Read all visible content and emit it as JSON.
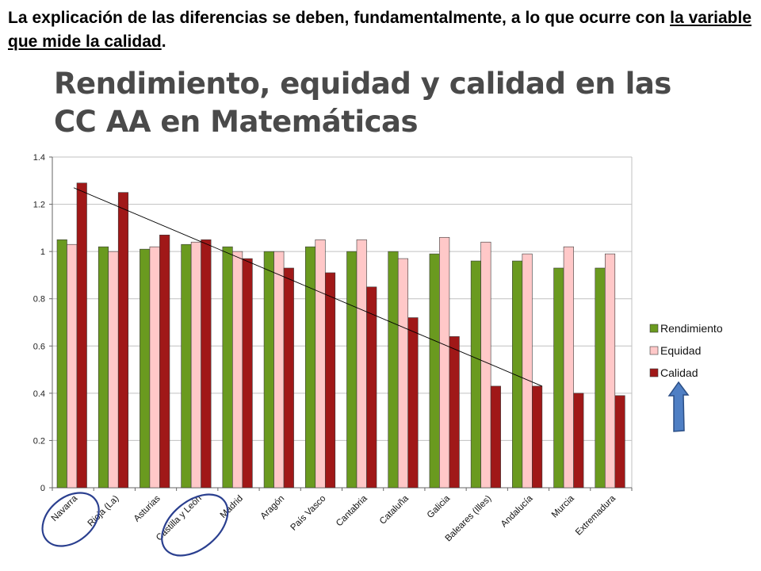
{
  "intro": {
    "text_before": "La explicación de las diferencias se deben, fundamentalmente, a lo que ocurre con ",
    "text_underlined": "la variable que mide la calidad",
    "text_after": "."
  },
  "slide_title": "Rendimiento, equidad y calidad en las CC AA en Matemáticas",
  "chart_data": {
    "type": "bar",
    "title": "",
    "xlabel": "",
    "ylabel": "",
    "ylim": [
      0,
      1.4
    ],
    "yticks": [
      "0",
      "0.2",
      "0.4",
      "0.6",
      "0.8",
      "1",
      "1.2",
      "1.4"
    ],
    "grid": true,
    "legend_position": "right",
    "categories": [
      "Navarra",
      "Rioja (La)",
      "Asturias",
      "Castilla y León",
      "Madrid",
      "Aragón",
      "País Vasco",
      "Cantabria",
      "Cataluña",
      "Galicia",
      "Baleares (Illes)",
      "Andalucía",
      "Murcia",
      "Extremadura"
    ],
    "series": [
      {
        "name": "Rendimiento",
        "color": "#6a9a1f",
        "values": [
          1.05,
          1.02,
          1.01,
          1.03,
          1.02,
          1.0,
          1.02,
          1.0,
          1.0,
          0.99,
          0.96,
          0.96,
          0.93,
          0.93
        ]
      },
      {
        "name": "Equidad",
        "color": "#ffc8c8",
        "values": [
          1.03,
          1.0,
          1.02,
          1.04,
          1.0,
          1.0,
          1.05,
          1.05,
          0.97,
          1.06,
          1.04,
          0.99,
          1.02,
          0.99
        ]
      },
      {
        "name": "Calidad",
        "color": "#a01818",
        "values": [
          1.29,
          1.25,
          1.07,
          1.05,
          0.97,
          0.93,
          0.91,
          0.85,
          0.72,
          0.64,
          0.43,
          0.43,
          0.4,
          0.39
        ]
      }
    ],
    "trend_line": {
      "from_category": "Navarra",
      "from_value": 1.29,
      "to_category": "Andalucía",
      "to_value": 0.43
    },
    "circled_categories": [
      "Navarra",
      "Castilla y León"
    ],
    "arrow_target_legend": "Calidad"
  },
  "colors": {
    "grid": "#c0c0c0",
    "circle": "#2a3f8f",
    "arrow_fill": "#4f7fc4",
    "arrow_stroke": "#2c4f86",
    "slide_title": "#4a4a4a"
  }
}
